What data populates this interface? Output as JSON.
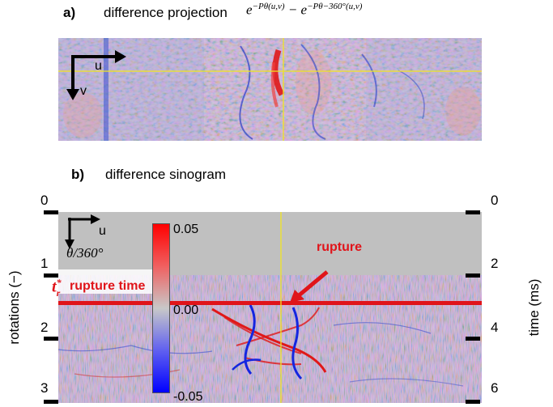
{
  "panel_a": {
    "label": "a)",
    "title": "difference projection",
    "formula": {
      "base": "e",
      "exp1": "−Pθ(u,v)",
      "minus": "−",
      "exp2": "−Pθ−360°(u,v)"
    },
    "axis_u": "u",
    "axis_v": "v"
  },
  "panel_b": {
    "label": "b)",
    "title": "difference sinogram",
    "axis_u": "u",
    "axis_theta": "θ/360°",
    "left_axis_title": "rotations (−)",
    "left_ticks": [
      "0",
      "1",
      "2",
      "3"
    ],
    "right_axis_title": "time (ms)",
    "right_ticks": [
      "0",
      "2",
      "4",
      "6"
    ],
    "rupture_symbol": "t",
    "rupture_symbol_sup": "*",
    "rupture_symbol_sub": "r",
    "rupture_time_label": "rupture time",
    "rupture_label": "rupture",
    "colorbar": {
      "max": "0.05",
      "mid": "0.00",
      "min": "-0.05"
    }
  },
  "colors": {
    "red": "#e0141a",
    "blue": "#1b2fd8",
    "yellow": "#f2e51f",
    "gray_mask": "#c0c0c0",
    "noise_bg": "#c8cdd8"
  }
}
